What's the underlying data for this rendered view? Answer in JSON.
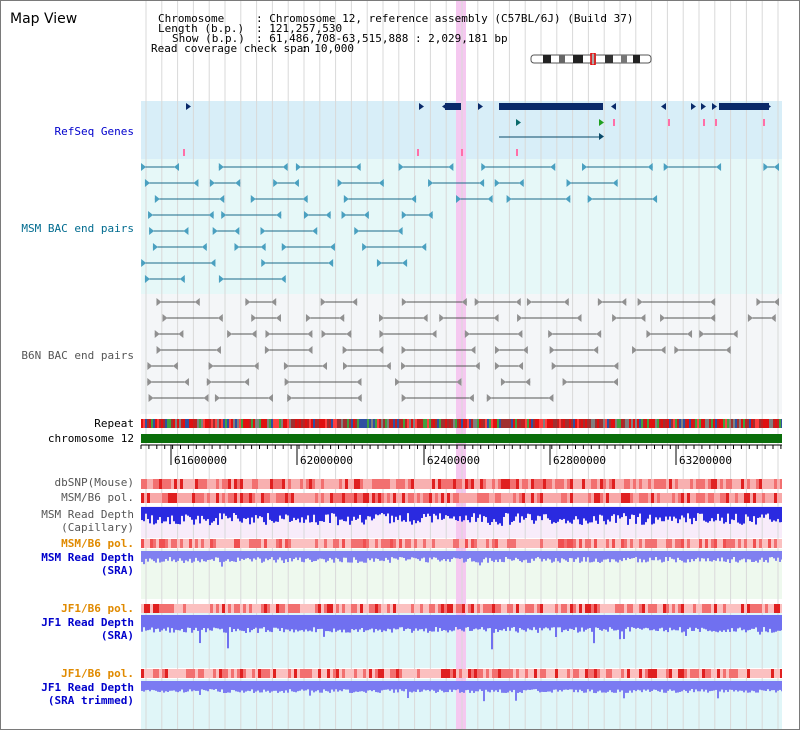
{
  "view": {
    "title": "Map View"
  },
  "header": {
    "chromosome_key": "Chromosome",
    "chromosome_value": ": Chromosome 12, reference assembly (C57BL/6J) (Build 37)",
    "length_key": "Length (b.p.)",
    "length_value": ": 121,257,530",
    "show_key": "Show (b.p.)",
    "show_value": ": 61,486,708-63,515,888 : 2,029,181 bp",
    "span_key": "Read coverage check span",
    "span_value": ": 10,000"
  },
  "tracks": {
    "refseq": "RefSeq Genes",
    "msm_bac": "MSM BAC end pairs",
    "b6n_bac": "B6N BAC end pairs",
    "repeat": "Repeat",
    "chrom": "chromosome 12",
    "dbsnp": "dbSNP(Mouse)",
    "msm_pol": "MSM/B6 pol.",
    "msm_depth_cap_1": "MSM Read Depth",
    "msm_depth_cap_2": "(Capillary)",
    "msm_pol2": "MSM/B6 pol.",
    "msm_depth_sra_1": "MSM Read Depth",
    "msm_depth_sra_2": "(SRA)",
    "jf1_pol": "JF1/B6 pol.",
    "jf1_depth_sra_1": "JF1 Read Depth",
    "jf1_depth_sra_2": "(SRA)",
    "jf1_pol2": "JF1/B6 pol.",
    "jf1_depth_trim_1": "JF1 Read Depth",
    "jf1_depth_trim_2": "(SRA trimmed)"
  },
  "axis": {
    "ticks": [
      "61600000",
      "62000000",
      "62400000",
      "62800000",
      "63200000"
    ]
  },
  "colors": {
    "label_blue": "#0000cc",
    "label_teal": "#006b8f",
    "label_gray": "#555555",
    "label_orange": "#e08a00",
    "refseq_bg": "#d8eef8",
    "msm_bg": "#e6f8f8",
    "b6n_bg": "#f4f6f8",
    "chrom_green": "#0a6e0a",
    "highlight": "#f5c8f0"
  }
}
